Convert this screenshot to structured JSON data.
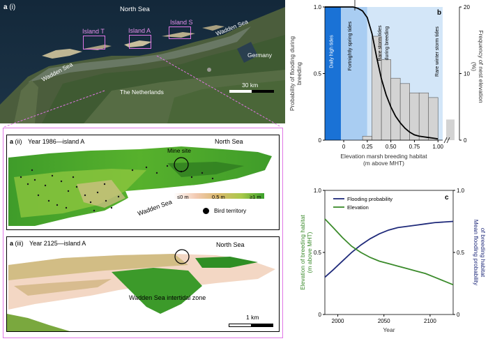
{
  "panel_a_i": {
    "panel_letter": "a",
    "panel_sub": "(i)",
    "sea_north": "North Sea",
    "island_t": "Island T",
    "island_a": "Island A",
    "island_s": "Island S",
    "wadden_sea_left": "Wadden Sea",
    "wadden_sea_right": "Wadden Sea",
    "germany": "Germany",
    "netherlands": "The Netherlands",
    "scale": "30 km"
  },
  "panel_a_ii": {
    "panel_letter": "a",
    "panel_sub": "(ii)",
    "year_label": "Year 1986—island A",
    "sea_north": "North Sea",
    "mine_site": "Mine site",
    "wadden": "Wadden Sea",
    "legend_0": "≤0 m",
    "legend_05": "0.5 m",
    "legend_1": "≥1 m",
    "bird_territory": "Bird territory"
  },
  "panel_a_iii": {
    "panel_letter": "a",
    "panel_sub": "(iii)",
    "year_label": "Year 2125—island A",
    "sea_north": "North Sea",
    "wadden": "Wadden Sea intertidal zone",
    "scale": "1 km"
  },
  "colors": {
    "flood_line": "#000000",
    "hist_bar": "#d3d3d3",
    "dark_blue_band": "#1a72d6",
    "mid_blue_band": "#a9cdf2",
    "light_blue_band": "#d3e6f8",
    "flooding_series": "#1f2a7a",
    "elevation_series": "#3a8a2a",
    "frame_pink": "#e67ad9"
  },
  "chart_data": [
    {
      "panel": "b",
      "type": "bar",
      "xlabel_lines": [
        "Elevation marsh breeding habitat",
        "(m above MHT)"
      ],
      "ylabel_left_lines": [
        "Probability of flooding during",
        "breeding"
      ],
      "ylabel_right_lines": [
        "Frequency of nest elevation",
        "(%)"
      ],
      "x_ticks": [
        "0",
        "0.25",
        "0.50",
        "0.75",
        "1.00"
      ],
      "x_tick_values": [
        0,
        0.25,
        0.5,
        0.75,
        1.0
      ],
      "xlim": [
        -0.2,
        1.05
      ],
      "ylim_left": [
        0,
        1.0
      ],
      "ylim_right": [
        0,
        20
      ],
      "y_left_ticks": [
        "0",
        "0.5",
        "1.0"
      ],
      "y_right_ticks": [
        "0",
        "10",
        "20"
      ],
      "tide_zones": [
        {
          "label": "Daily high tides",
          "x0": -0.2,
          "x1": -0.03
        },
        {
          "label": "Fortnightly spring tides",
          "x0": -0.03,
          "x1": 0.25
        },
        {
          "label": "Rare storm tides during breeding",
          "x0": 0.25,
          "x1": 1.05
        },
        {
          "label": "Rare winter storm tides",
          "x0": 1.05,
          "x1": 1.05
        }
      ],
      "histogram": {
        "bin_edges": [
          0.2,
          0.3,
          0.4,
          0.5,
          0.6,
          0.7,
          0.8,
          0.9,
          1.0
        ],
        "frequency_pct": [
          0.6,
          15.6,
          12.1,
          9.3,
          8.5,
          7.1,
          7.1,
          6.4
        ],
        "overflow_bar_pct": 3.1
      },
      "flooding_curve": {
        "x": [
          -0.2,
          -0.1,
          0.0,
          0.1,
          0.15,
          0.2,
          0.25,
          0.3,
          0.35,
          0.4,
          0.45,
          0.5,
          0.55,
          0.6,
          0.65,
          0.7,
          0.75,
          0.8,
          0.85,
          0.9,
          0.95,
          1.0
        ],
        "y": [
          1.0,
          1.0,
          1.0,
          1.0,
          0.99,
          0.97,
          0.92,
          0.8,
          0.62,
          0.46,
          0.34,
          0.25,
          0.18,
          0.13,
          0.09,
          0.06,
          0.04,
          0.03,
          0.025,
          0.02,
          0.015,
          0.01
        ]
      }
    },
    {
      "panel": "c",
      "type": "line",
      "xlabel": "Year",
      "ylabel_left_lines": [
        "Elevation of breeding habitat",
        "(m above MHT)"
      ],
      "ylabel_right_lines": [
        "Mean flooding probability",
        "of breeding habitat"
      ],
      "x_ticks": [
        "2000",
        "2050",
        "2100"
      ],
      "x_tick_values": [
        2000,
        2050,
        2100
      ],
      "xlim": [
        1986,
        2125
      ],
      "ylim_left": [
        0,
        1.0
      ],
      "ylim_right": [
        0,
        1.0
      ],
      "y_ticks": [
        "0",
        "0.5",
        "1.0"
      ],
      "series": [
        {
          "name": "Flooding probability",
          "x": [
            1986,
            1995,
            2005,
            2015,
            2025,
            2035,
            2045,
            2055,
            2065,
            2075,
            2085,
            2095,
            2105,
            2115,
            2125
          ],
          "values": [
            0.3,
            0.36,
            0.43,
            0.5,
            0.56,
            0.61,
            0.65,
            0.68,
            0.7,
            0.71,
            0.72,
            0.73,
            0.74,
            0.745,
            0.75
          ]
        },
        {
          "name": "Elevation",
          "x": [
            1986,
            1995,
            2005,
            2015,
            2025,
            2035,
            2045,
            2055,
            2065,
            2075,
            2085,
            2095,
            2105,
            2115,
            2125
          ],
          "values": [
            0.77,
            0.7,
            0.62,
            0.55,
            0.5,
            0.46,
            0.43,
            0.41,
            0.39,
            0.37,
            0.35,
            0.33,
            0.3,
            0.27,
            0.24
          ]
        }
      ]
    }
  ]
}
